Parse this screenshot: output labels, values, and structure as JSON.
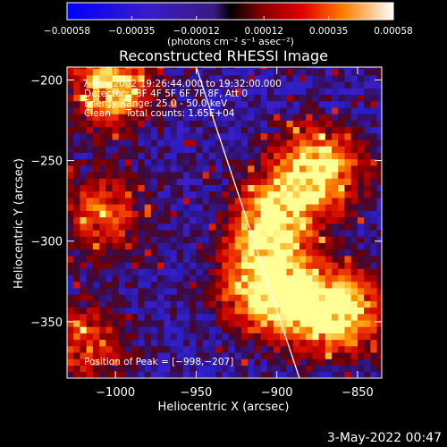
{
  "chart_data": {
    "type": "heatmap",
    "title": "Reconstructed RHESSI Image",
    "xlabel": "Heliocentric X (arcsec)",
    "ylabel": "Heliocentric Y (arcsec)",
    "xlim": [
      -1030,
      -835
    ],
    "ylim": [
      -385,
      -192
    ],
    "x_ticks": [
      -1000,
      -950,
      -900,
      -850
    ],
    "x_tick_labels": [
      "−1000",
      "−950",
      "−900",
      "−850"
    ],
    "y_ticks": [
      -200,
      -250,
      -300,
      -350
    ],
    "y_tick_labels": [
      "−200",
      "−250",
      "−300",
      "−350"
    ],
    "colorbar": {
      "min": -0.00058,
      "max": 0.00058,
      "ticks": [
        -0.00058,
        -0.00035,
        -0.00012,
        0.00012,
        0.00035,
        0.00058
      ],
      "tick_labels": [
        "−0.00058",
        "−0.00035",
        "−0.00012",
        "0.00012",
        "0.00035",
        "0.00058"
      ],
      "units_label": "(photons cm⁻² s⁻¹ asec⁻²)"
    },
    "annotations": [
      "7-Nov-2002 19:26:44.000 to 19:32:00.000",
      "Detectors: 3F 4F 5F 6F 7F 8F, Att 0",
      "Energy Range: 25.0 - 50.0 keV",
      "Clean     Total counts: 1.65E+04"
    ],
    "peak_label": "Position of Peak = [−998,−207]",
    "peak_position": [
      -998,
      -207
    ],
    "bright_regions": [
      {
        "x": -1003,
        "y": -205,
        "level": 0.85
      },
      {
        "x": -877,
        "y": -258,
        "level": 1.0
      },
      {
        "x": -905,
        "y": -290,
        "level": 0.9
      },
      {
        "x": -912,
        "y": -330,
        "level": 0.95
      },
      {
        "x": -880,
        "y": -345,
        "level": 0.8
      },
      {
        "x": -855,
        "y": -345,
        "level": 0.6
      },
      {
        "x": -1010,
        "y": -285,
        "level": 0.55
      },
      {
        "x": -1020,
        "y": -365,
        "level": 0.5
      }
    ],
    "limb_line": [
      [
        -950,
        -192
      ],
      [
        -886,
        -385
      ]
    ]
  },
  "footer": {
    "date": "3-May-2022 00:47"
  }
}
